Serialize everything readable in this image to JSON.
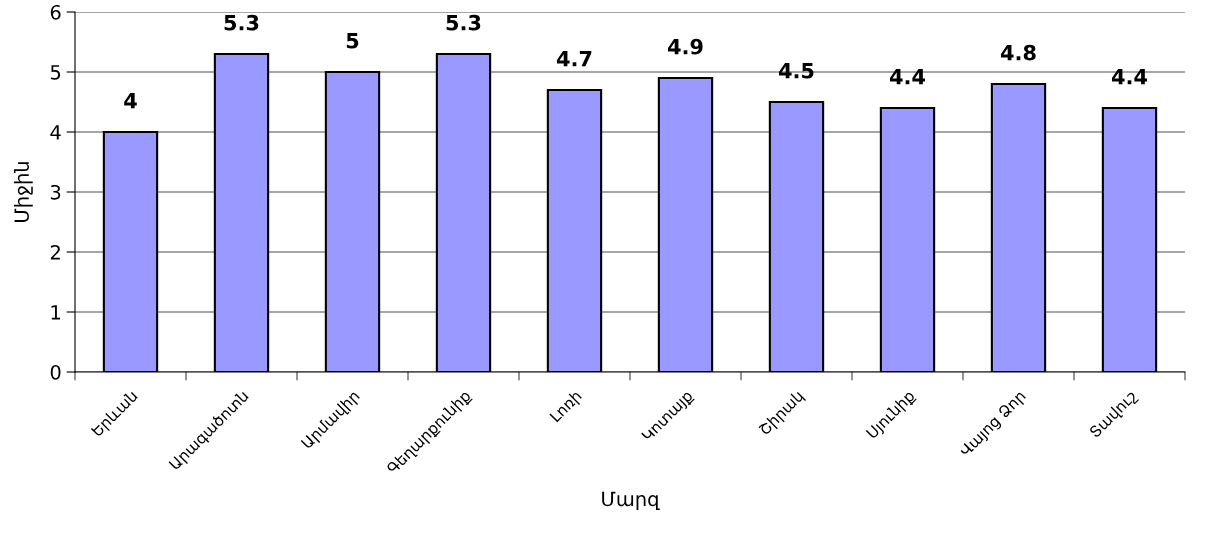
{
  "chart_data": {
    "type": "bar",
    "xlabel": "Մարզ",
    "ylabel": "Միջին",
    "categories": [
      "Երևան",
      "Արագածոտն",
      "Արմավիր",
      "Գեղարքունիք",
      "Լոռի",
      "Կոտայք",
      "Շիրակ",
      "Սյունիք",
      "Վայոց Ձոր",
      "Տավուշ"
    ],
    "values": [
      4,
      5.3,
      5,
      5.3,
      4.7,
      4.9,
      4.5,
      4.4,
      4.8,
      4.4
    ],
    "color": "#9999ff",
    "ylim": [
      0,
      6
    ],
    "yticks": [
      0,
      1,
      2,
      3,
      4,
      5,
      6
    ],
    "grid": "y",
    "data_labels": true,
    "legend": false
  }
}
